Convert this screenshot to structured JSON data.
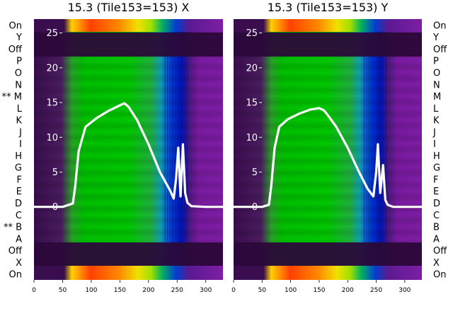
{
  "chart_data": [
    {
      "type": "heatmap",
      "title": "15.3 (Tile153=153) X",
      "xlim": [
        0,
        330
      ],
      "ylim": [
        -10.5,
        27
      ],
      "xticks": [
        0,
        50,
        100,
        150,
        200,
        250,
        300
      ],
      "yticks": [
        0,
        5,
        10,
        15,
        20,
        25
      ],
      "grid": false,
      "left_labels": [
        "On",
        "Y",
        "Off",
        "P",
        "O",
        "N",
        "** M",
        "L",
        "K",
        "J",
        "I",
        "H",
        "G",
        "F",
        "E",
        "D",
        "C",
        "** B",
        "A",
        "Off",
        "X",
        "On"
      ],
      "series": [
        {
          "x": [
            0,
            50,
            68,
            72,
            78,
            90,
            110,
            130,
            150,
            158,
            165,
            180,
            200,
            220,
            238,
            244,
            248,
            252,
            256,
            260,
            264,
            268,
            275,
            300,
            330
          ],
          "y": [
            0,
            0,
            0.5,
            3,
            8,
            11.5,
            12.8,
            13.8,
            14.6,
            14.9,
            14.4,
            12.5,
            9,
            5,
            2.3,
            1.2,
            4,
            8.5,
            1.5,
            9,
            2,
            0.6,
            0.1,
            0,
            0
          ]
        }
      ]
    },
    {
      "type": "heatmap",
      "title": "15.3 (Tile153=153) Y",
      "xlim": [
        0,
        330
      ],
      "ylim": [
        -10.5,
        27
      ],
      "xticks": [
        0,
        50,
        100,
        150,
        200,
        250,
        300
      ],
      "yticks": [
        0,
        5,
        10,
        15,
        20,
        25
      ],
      "grid": false,
      "right_labels": [
        "On",
        "Y",
        "Off",
        "P",
        "O",
        "N",
        "M",
        "L",
        "K",
        "J",
        "I",
        "H",
        "G",
        "F",
        "E",
        "D",
        "C",
        "B",
        "A",
        "Off",
        "X",
        "On"
      ],
      "series": [
        {
          "x": [
            0,
            50,
            62,
            66,
            72,
            80,
            95,
            115,
            135,
            150,
            158,
            165,
            180,
            200,
            220,
            235,
            245,
            250,
            253,
            257,
            262,
            266,
            270,
            280,
            330
          ],
          "y": [
            0,
            0,
            0.3,
            3,
            8.5,
            11.5,
            12.6,
            13.4,
            14,
            14.2,
            13.9,
            13.2,
            11.5,
            8.5,
            5,
            2.6,
            1.5,
            5,
            9,
            2,
            6,
            1,
            0.3,
            0,
            0
          ]
        }
      ]
    }
  ]
}
